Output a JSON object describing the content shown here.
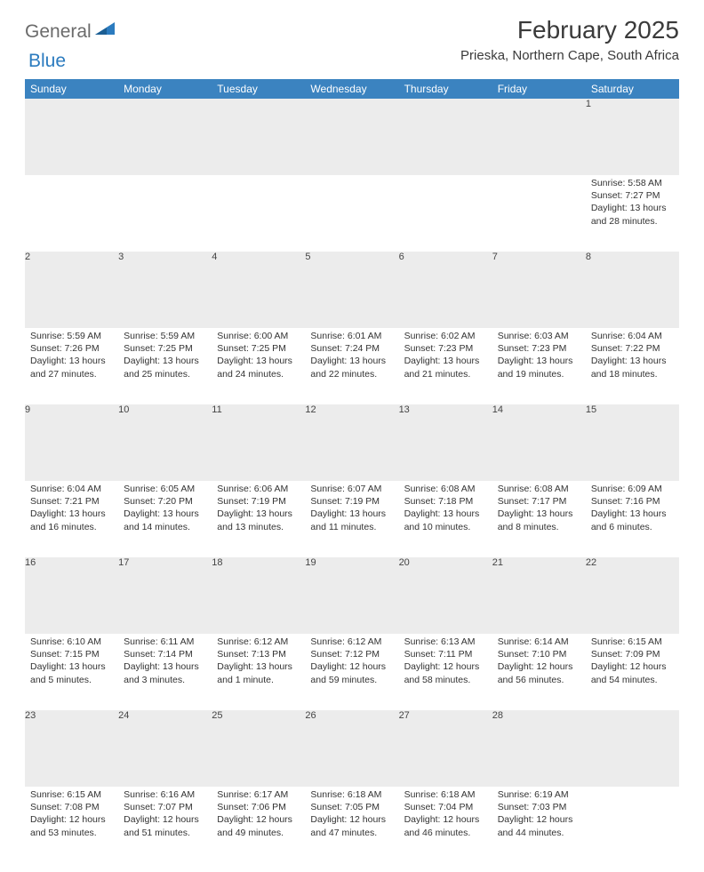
{
  "logo": {
    "word1": "General",
    "word2": "Blue"
  },
  "title": "February 2025",
  "location": "Prieska, Northern Cape, South Africa",
  "colors": {
    "header_bg": "#3b83c0",
    "header_text": "#ffffff",
    "daynum_bg": "#ececec",
    "row_divider": "#2f5f8a",
    "text": "#333333",
    "logo_gray": "#6b6b6b",
    "logo_blue": "#2b7bbf"
  },
  "weekdays": [
    "Sunday",
    "Monday",
    "Tuesday",
    "Wednesday",
    "Thursday",
    "Friday",
    "Saturday"
  ],
  "weeks": [
    [
      null,
      null,
      null,
      null,
      null,
      null,
      {
        "n": "1",
        "sr": "Sunrise: 5:58 AM",
        "ss": "Sunset: 7:27 PM",
        "d1": "Daylight: 13 hours",
        "d2": "and 28 minutes."
      }
    ],
    [
      {
        "n": "2",
        "sr": "Sunrise: 5:59 AM",
        "ss": "Sunset: 7:26 PM",
        "d1": "Daylight: 13 hours",
        "d2": "and 27 minutes."
      },
      {
        "n": "3",
        "sr": "Sunrise: 5:59 AM",
        "ss": "Sunset: 7:25 PM",
        "d1": "Daylight: 13 hours",
        "d2": "and 25 minutes."
      },
      {
        "n": "4",
        "sr": "Sunrise: 6:00 AM",
        "ss": "Sunset: 7:25 PM",
        "d1": "Daylight: 13 hours",
        "d2": "and 24 minutes."
      },
      {
        "n": "5",
        "sr": "Sunrise: 6:01 AM",
        "ss": "Sunset: 7:24 PM",
        "d1": "Daylight: 13 hours",
        "d2": "and 22 minutes."
      },
      {
        "n": "6",
        "sr": "Sunrise: 6:02 AM",
        "ss": "Sunset: 7:23 PM",
        "d1": "Daylight: 13 hours",
        "d2": "and 21 minutes."
      },
      {
        "n": "7",
        "sr": "Sunrise: 6:03 AM",
        "ss": "Sunset: 7:23 PM",
        "d1": "Daylight: 13 hours",
        "d2": "and 19 minutes."
      },
      {
        "n": "8",
        "sr": "Sunrise: 6:04 AM",
        "ss": "Sunset: 7:22 PM",
        "d1": "Daylight: 13 hours",
        "d2": "and 18 minutes."
      }
    ],
    [
      {
        "n": "9",
        "sr": "Sunrise: 6:04 AM",
        "ss": "Sunset: 7:21 PM",
        "d1": "Daylight: 13 hours",
        "d2": "and 16 minutes."
      },
      {
        "n": "10",
        "sr": "Sunrise: 6:05 AM",
        "ss": "Sunset: 7:20 PM",
        "d1": "Daylight: 13 hours",
        "d2": "and 14 minutes."
      },
      {
        "n": "11",
        "sr": "Sunrise: 6:06 AM",
        "ss": "Sunset: 7:19 PM",
        "d1": "Daylight: 13 hours",
        "d2": "and 13 minutes."
      },
      {
        "n": "12",
        "sr": "Sunrise: 6:07 AM",
        "ss": "Sunset: 7:19 PM",
        "d1": "Daylight: 13 hours",
        "d2": "and 11 minutes."
      },
      {
        "n": "13",
        "sr": "Sunrise: 6:08 AM",
        "ss": "Sunset: 7:18 PM",
        "d1": "Daylight: 13 hours",
        "d2": "and 10 minutes."
      },
      {
        "n": "14",
        "sr": "Sunrise: 6:08 AM",
        "ss": "Sunset: 7:17 PM",
        "d1": "Daylight: 13 hours",
        "d2": "and 8 minutes."
      },
      {
        "n": "15",
        "sr": "Sunrise: 6:09 AM",
        "ss": "Sunset: 7:16 PM",
        "d1": "Daylight: 13 hours",
        "d2": "and 6 minutes."
      }
    ],
    [
      {
        "n": "16",
        "sr": "Sunrise: 6:10 AM",
        "ss": "Sunset: 7:15 PM",
        "d1": "Daylight: 13 hours",
        "d2": "and 5 minutes."
      },
      {
        "n": "17",
        "sr": "Sunrise: 6:11 AM",
        "ss": "Sunset: 7:14 PM",
        "d1": "Daylight: 13 hours",
        "d2": "and 3 minutes."
      },
      {
        "n": "18",
        "sr": "Sunrise: 6:12 AM",
        "ss": "Sunset: 7:13 PM",
        "d1": "Daylight: 13 hours",
        "d2": "and 1 minute."
      },
      {
        "n": "19",
        "sr": "Sunrise: 6:12 AM",
        "ss": "Sunset: 7:12 PM",
        "d1": "Daylight: 12 hours",
        "d2": "and 59 minutes."
      },
      {
        "n": "20",
        "sr": "Sunrise: 6:13 AM",
        "ss": "Sunset: 7:11 PM",
        "d1": "Daylight: 12 hours",
        "d2": "and 58 minutes."
      },
      {
        "n": "21",
        "sr": "Sunrise: 6:14 AM",
        "ss": "Sunset: 7:10 PM",
        "d1": "Daylight: 12 hours",
        "d2": "and 56 minutes."
      },
      {
        "n": "22",
        "sr": "Sunrise: 6:15 AM",
        "ss": "Sunset: 7:09 PM",
        "d1": "Daylight: 12 hours",
        "d2": "and 54 minutes."
      }
    ],
    [
      {
        "n": "23",
        "sr": "Sunrise: 6:15 AM",
        "ss": "Sunset: 7:08 PM",
        "d1": "Daylight: 12 hours",
        "d2": "and 53 minutes."
      },
      {
        "n": "24",
        "sr": "Sunrise: 6:16 AM",
        "ss": "Sunset: 7:07 PM",
        "d1": "Daylight: 12 hours",
        "d2": "and 51 minutes."
      },
      {
        "n": "25",
        "sr": "Sunrise: 6:17 AM",
        "ss": "Sunset: 7:06 PM",
        "d1": "Daylight: 12 hours",
        "d2": "and 49 minutes."
      },
      {
        "n": "26",
        "sr": "Sunrise: 6:18 AM",
        "ss": "Sunset: 7:05 PM",
        "d1": "Daylight: 12 hours",
        "d2": "and 47 minutes."
      },
      {
        "n": "27",
        "sr": "Sunrise: 6:18 AM",
        "ss": "Sunset: 7:04 PM",
        "d1": "Daylight: 12 hours",
        "d2": "and 46 minutes."
      },
      {
        "n": "28",
        "sr": "Sunrise: 6:19 AM",
        "ss": "Sunset: 7:03 PM",
        "d1": "Daylight: 12 hours",
        "d2": "and 44 minutes."
      },
      null
    ]
  ]
}
